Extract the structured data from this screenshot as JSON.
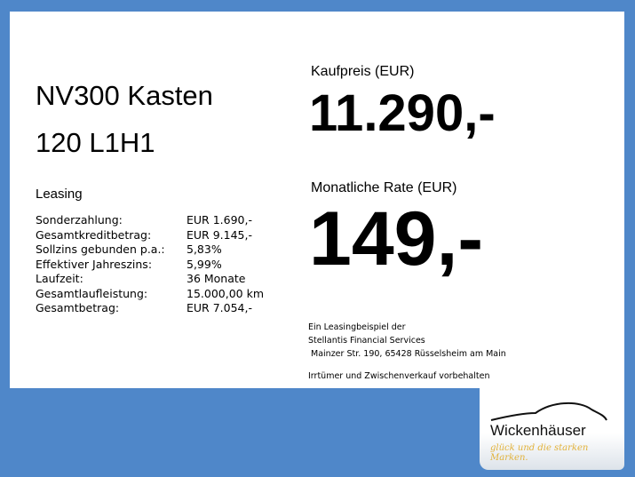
{
  "title_line1": "NV300 Kasten",
  "title_line2": "120 L1H1",
  "leasing_heading": "Leasing",
  "specs": [
    {
      "label": "Sonderzahlung:",
      "value": "EUR 1.690,-"
    },
    {
      "label": "Gesamtkreditbetrag:",
      "value": "EUR 9.145,-"
    },
    {
      "label": "Sollzins gebunden p.a.:",
      "value": "5,83%"
    },
    {
      "label": "Effektiver Jahreszins:",
      "value": "5,99%"
    },
    {
      "label": "Laufzeit:",
      "value": "36 Monate"
    },
    {
      "label": "Gesamtlaufleistung:",
      "value": "15.000,00 km"
    },
    {
      "label": "Gesamtbetrag:",
      "value": "EUR 7.054,-"
    }
  ],
  "price_label": "Kaufpreis (EUR)",
  "price": "11.290,-",
  "rate_label": "Monatliche Rate (EUR)",
  "rate": "149,-",
  "disclaimer": [
    "Ein Leasingbeispiel der",
    "Stellantis Financial Services",
    " Mainzer Str. 190, 65428 Rüsselsheim am Main",
    "",
    "Irrtümer und Zwischenverkauf vorbehalten"
  ],
  "logo": {
    "name": "Wickenhäuser",
    "slogan": "glück und die starken Marken."
  },
  "colors": {
    "background": "#4f87c9",
    "slogan": "#e2b23a"
  }
}
